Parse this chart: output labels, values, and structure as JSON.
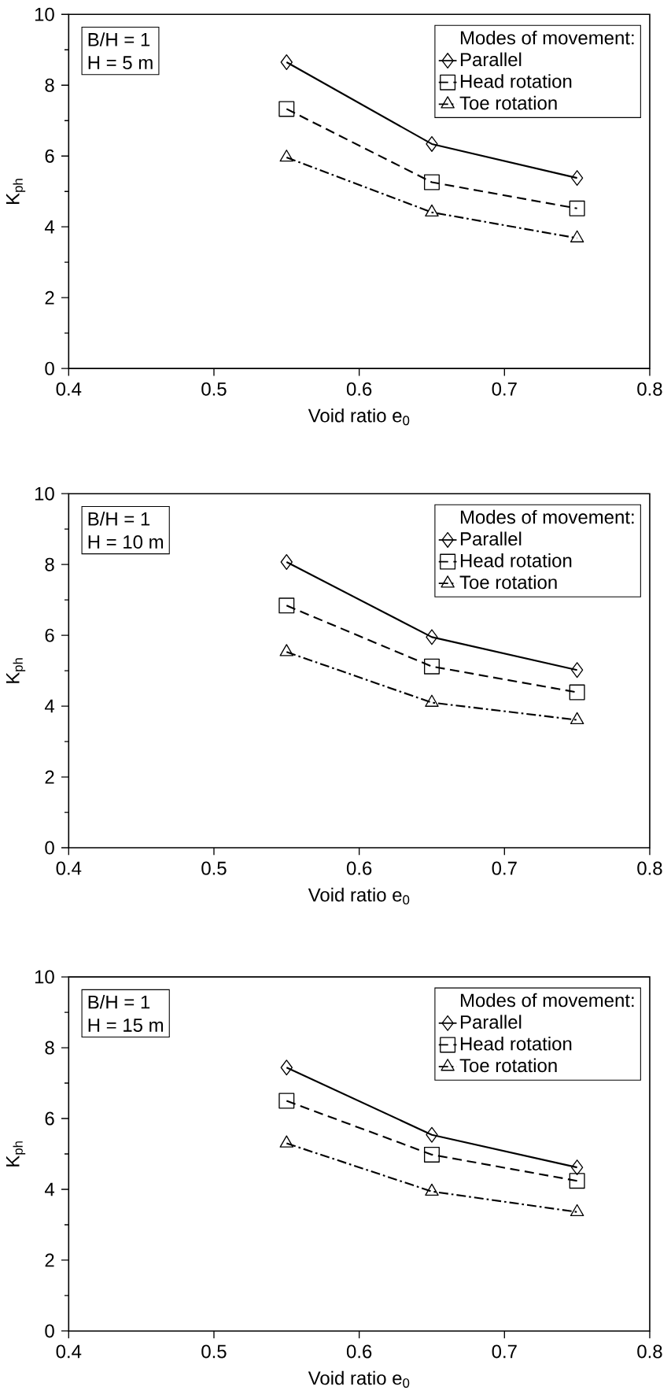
{
  "chart_data": [
    {
      "type": "line",
      "xlabel": "Void ratio e$_{0}$",
      "ylabel": "K$_{ph}$",
      "legend_title": "Modes of movement:",
      "legend": "top right",
      "annotations": [
        "B/H = 1",
        "H = 5 m"
      ],
      "x": [
        0.55,
        0.65,
        0.75
      ],
      "xlim": [
        0.4,
        0.8
      ],
      "xticks": [
        0.4,
        0.5,
        0.6,
        0.7,
        0.8
      ],
      "ylim": [
        0,
        10
      ],
      "yticks": [
        0,
        2,
        4,
        6,
        8,
        10
      ],
      "series": [
        {
          "name": "Parallel",
          "color": "#000000",
          "marker": "diamond",
          "line_style": "solid",
          "values": [
            8.65,
            6.34,
            5.38
          ]
        },
        {
          "name": "Head rotation",
          "color": "#000000",
          "marker": "square",
          "line_style": "dashed",
          "values": [
            7.33,
            5.26,
            4.52
          ]
        },
        {
          "name": "Toe rotation",
          "color": "#000000",
          "marker": "triangle",
          "line_style": "dashdot",
          "values": [
            5.96,
            4.41,
            3.68
          ]
        }
      ]
    },
    {
      "type": "line",
      "xlabel": "Void ratio e$_{0}$",
      "ylabel": "K$_{ph}$",
      "legend_title": "Modes of movement:",
      "legend": "top right",
      "annotations": [
        "B/H = 1",
        "H = 10 m"
      ],
      "x": [
        0.55,
        0.65,
        0.75
      ],
      "xlim": [
        0.4,
        0.8
      ],
      "xticks": [
        0.4,
        0.5,
        0.6,
        0.7,
        0.8
      ],
      "ylim": [
        0,
        10
      ],
      "yticks": [
        0,
        2,
        4,
        6,
        8,
        10
      ],
      "series": [
        {
          "name": "Parallel",
          "color": "#000000",
          "marker": "diamond",
          "line_style": "solid",
          "values": [
            8.07,
            5.95,
            5.02
          ]
        },
        {
          "name": "Head rotation",
          "color": "#000000",
          "marker": "square",
          "line_style": "dashed",
          "values": [
            6.84,
            5.12,
            4.39
          ]
        },
        {
          "name": "Toe rotation",
          "color": "#000000",
          "marker": "triangle",
          "line_style": "dashdot",
          "values": [
            5.53,
            4.1,
            3.61
          ]
        }
      ]
    },
    {
      "type": "line",
      "xlabel": "Void ratio e$_{0}$",
      "ylabel": "K$_{ph}$",
      "legend_title": "Modes of movement:",
      "legend": "top right",
      "annotations": [
        "B/H = 1",
        "H = 15 m"
      ],
      "x": [
        0.55,
        0.65,
        0.75
      ],
      "xlim": [
        0.4,
        0.8
      ],
      "xticks": [
        0.4,
        0.5,
        0.6,
        0.7,
        0.8
      ],
      "ylim": [
        0,
        10
      ],
      "yticks": [
        0,
        2,
        4,
        6,
        8,
        10
      ],
      "series": [
        {
          "name": "Parallel",
          "color": "#000000",
          "marker": "diamond",
          "line_style": "solid",
          "values": [
            7.44,
            5.54,
            4.62
          ]
        },
        {
          "name": "Head rotation",
          "color": "#000000",
          "marker": "square",
          "line_style": "dashed",
          "values": [
            6.5,
            4.98,
            4.24
          ]
        },
        {
          "name": "Toe rotation",
          "color": "#000000",
          "marker": "triangle",
          "line_style": "dashdot",
          "values": [
            5.3,
            3.94,
            3.36
          ]
        }
      ]
    }
  ]
}
